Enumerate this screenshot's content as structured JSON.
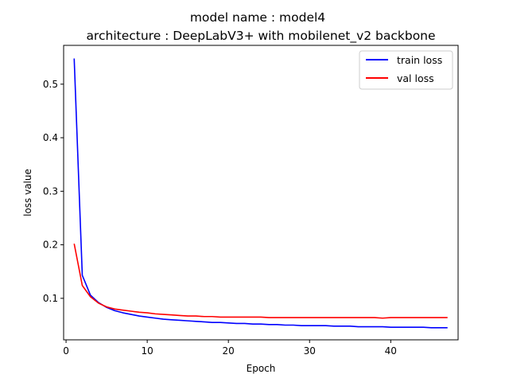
{
  "chart_data": {
    "type": "line",
    "title_line1": "model name : model4",
    "title_line2": "architecture : DeepLabV3+ with mobilenet_v2 backbone",
    "xlabel": "Epoch",
    "ylabel": "loss value",
    "xlim": [
      -0.3,
      48.3
    ],
    "ylim": [
      0.0225,
      0.5725
    ],
    "xticks": [
      0,
      10,
      20,
      30,
      40
    ],
    "yticks": [
      0.1,
      0.2,
      0.3,
      0.4,
      0.5
    ],
    "grid": false,
    "legend_position": "top-right",
    "x": [
      1,
      2,
      3,
      4,
      5,
      6,
      7,
      8,
      9,
      10,
      11,
      12,
      13,
      14,
      15,
      16,
      17,
      18,
      19,
      20,
      21,
      22,
      23,
      24,
      25,
      26,
      27,
      28,
      29,
      30,
      31,
      32,
      33,
      34,
      35,
      36,
      37,
      38,
      39,
      40,
      41,
      42,
      43,
      44,
      45,
      46,
      47
    ],
    "series": [
      {
        "name": "train loss",
        "color": "#0000ff",
        "values": [
          0.548,
          0.143,
          0.106,
          0.092,
          0.083,
          0.077,
          0.073,
          0.07,
          0.067,
          0.065,
          0.063,
          0.061,
          0.06,
          0.059,
          0.058,
          0.057,
          0.056,
          0.055,
          0.055,
          0.054,
          0.053,
          0.053,
          0.052,
          0.052,
          0.051,
          0.051,
          0.05,
          0.05,
          0.049,
          0.049,
          0.049,
          0.049,
          0.048,
          0.048,
          0.048,
          0.047,
          0.047,
          0.047,
          0.047,
          0.046,
          0.046,
          0.046,
          0.046,
          0.046,
          0.045,
          0.045,
          0.045
        ]
      },
      {
        "name": "val loss",
        "color": "#ff0000",
        "values": [
          0.202,
          0.124,
          0.103,
          0.091,
          0.084,
          0.08,
          0.078,
          0.076,
          0.074,
          0.073,
          0.071,
          0.07,
          0.069,
          0.068,
          0.067,
          0.067,
          0.066,
          0.066,
          0.065,
          0.065,
          0.065,
          0.065,
          0.065,
          0.065,
          0.064,
          0.064,
          0.064,
          0.064,
          0.064,
          0.064,
          0.064,
          0.064,
          0.064,
          0.064,
          0.064,
          0.064,
          0.064,
          0.064,
          0.063,
          0.064,
          0.064,
          0.064,
          0.064,
          0.064,
          0.064,
          0.064,
          0.064
        ]
      }
    ]
  }
}
